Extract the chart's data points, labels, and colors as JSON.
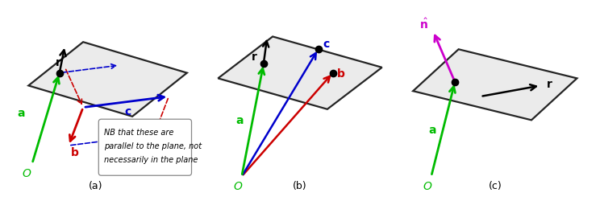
{
  "figsize": [
    7.44,
    2.51
  ],
  "dpi": 100,
  "background": "#ffffff",
  "colors": {
    "green": "#00bb00",
    "red": "#cc0000",
    "blue": "#0000cc",
    "black": "#000000",
    "magenta": "#cc00cc",
    "plane_fill": "#e0e0e0",
    "plane_edge": "#000000"
  },
  "panel_labels": [
    "(a)",
    "(b)",
    "(c)"
  ]
}
